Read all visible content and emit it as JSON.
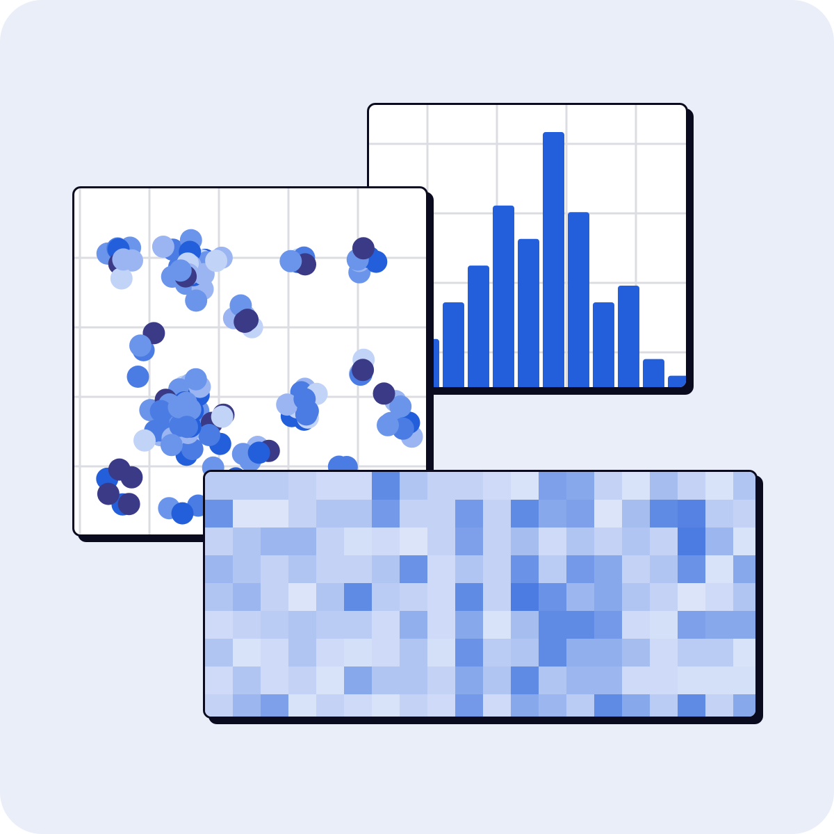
{
  "colors": {
    "background": "#eaeef8",
    "card_border": "#0b0b1f",
    "card_fill": "#ffffff",
    "grid": "#dcdde3",
    "bar": "#245fdb",
    "point_palette": [
      "#3a3a86",
      "#245fdb",
      "#4a7ce4",
      "#6b95ea",
      "#9ab5f1",
      "#c2d3f8"
    ]
  },
  "bar_panel": {
    "chart_data": {
      "type": "bar",
      "values": [
        1.4,
        2.5,
        3.6,
        5.4,
        4.4,
        7.6,
        5.2,
        2.5,
        3.0,
        0.8,
        0.3
      ],
      "ylim": [
        0,
        8
      ],
      "grid": true
    }
  },
  "scatter_panel": {
    "chart_data": {
      "type": "scatter",
      "grid": true,
      "xlim": [
        0,
        500
      ],
      "ylim": [
        0,
        500
      ],
      "clusters": [
        {
          "cx": 70,
          "cy": 100,
          "spread": 28,
          "n": 8
        },
        {
          "cx": 170,
          "cy": 110,
          "spread": 38,
          "n": 22
        },
        {
          "cx": 235,
          "cy": 185,
          "spread": 20,
          "n": 6
        },
        {
          "cx": 325,
          "cy": 105,
          "spread": 14,
          "n": 5
        },
        {
          "cx": 415,
          "cy": 100,
          "spread": 22,
          "n": 9
        },
        {
          "cx": 100,
          "cy": 225,
          "spread": 12,
          "n": 3
        },
        {
          "cx": 410,
          "cy": 255,
          "spread": 14,
          "n": 5
        },
        {
          "cx": 325,
          "cy": 310,
          "spread": 22,
          "n": 12
        },
        {
          "cx": 150,
          "cy": 330,
          "spread": 55,
          "n": 50
        },
        {
          "cx": 460,
          "cy": 330,
          "spread": 28,
          "n": 9
        },
        {
          "cx": 260,
          "cy": 395,
          "spread": 25,
          "n": 6
        },
        {
          "cx": 60,
          "cy": 440,
          "spread": 30,
          "n": 6
        },
        {
          "cx": 150,
          "cy": 465,
          "spread": 20,
          "n": 3
        },
        {
          "cx": 385,
          "cy": 405,
          "spread": 10,
          "n": 2
        }
      ]
    }
  },
  "heatmap_panel": {
    "chart_data": {
      "type": "heatmap",
      "rows": 9,
      "cols": 20,
      "values": [
        [
          0.25,
          0.25,
          0.25,
          0.2,
          0.15,
          0.15,
          0.7,
          0.3,
          0.2,
          0.2,
          0.15,
          0.1,
          0.55,
          0.5,
          0.2,
          0.1,
          0.35,
          0.2,
          0.1,
          0.3
        ],
        [
          0.65,
          0.08,
          0.08,
          0.2,
          0.3,
          0.3,
          0.6,
          0.2,
          0.2,
          0.6,
          0.2,
          0.7,
          0.5,
          0.55,
          0.08,
          0.35,
          0.7,
          0.75,
          0.25,
          0.2
        ],
        [
          0.2,
          0.3,
          0.4,
          0.4,
          0.2,
          0.12,
          0.15,
          0.08,
          0.2,
          0.55,
          0.2,
          0.35,
          0.15,
          0.3,
          0.2,
          0.3,
          0.2,
          0.8,
          0.4,
          0.1
        ],
        [
          0.4,
          0.3,
          0.2,
          0.3,
          0.2,
          0.2,
          0.3,
          0.65,
          0.15,
          0.3,
          0.2,
          0.65,
          0.25,
          0.6,
          0.5,
          0.2,
          0.3,
          0.65,
          0.1,
          0.5
        ],
        [
          0.3,
          0.4,
          0.2,
          0.08,
          0.3,
          0.7,
          0.25,
          0.2,
          0.15,
          0.7,
          0.2,
          0.8,
          0.65,
          0.4,
          0.5,
          0.3,
          0.2,
          0.08,
          0.15,
          0.3
        ],
        [
          0.15,
          0.2,
          0.25,
          0.3,
          0.25,
          0.25,
          0.15,
          0.45,
          0.15,
          0.5,
          0.1,
          0.35,
          0.7,
          0.7,
          0.6,
          0.15,
          0.12,
          0.55,
          0.5,
          0.5
        ],
        [
          0.3,
          0.1,
          0.15,
          0.3,
          0.15,
          0.12,
          0.15,
          0.3,
          0.12,
          0.65,
          0.25,
          0.3,
          0.7,
          0.45,
          0.45,
          0.35,
          0.15,
          0.25,
          0.25,
          0.1
        ],
        [
          0.15,
          0.3,
          0.15,
          0.2,
          0.1,
          0.5,
          0.3,
          0.3,
          0.2,
          0.5,
          0.3,
          0.7,
          0.3,
          0.4,
          0.4,
          0.15,
          0.15,
          0.12,
          0.12,
          0.12
        ],
        [
          0.2,
          0.4,
          0.55,
          0.1,
          0.2,
          0.15,
          0.1,
          0.2,
          0.15,
          0.6,
          0.15,
          0.5,
          0.4,
          0.25,
          0.7,
          0.5,
          0.25,
          0.7,
          0.2,
          0.5
        ]
      ]
    }
  }
}
